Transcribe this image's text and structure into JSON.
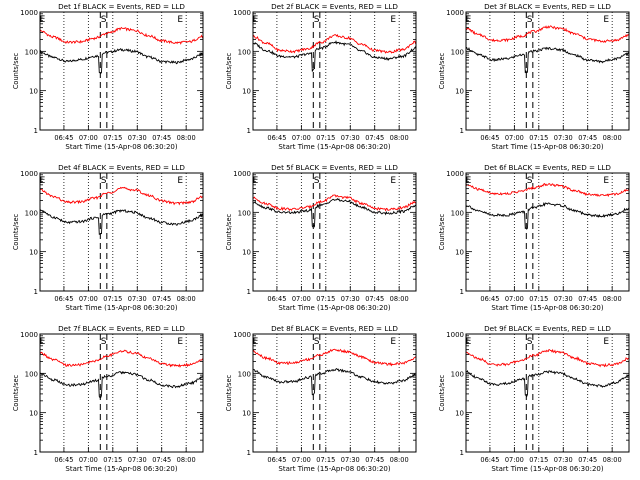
{
  "figure": {
    "ylabel": "Counts/sec",
    "xlabel": "Start Time (15-Apr-08 06:30:20)",
    "x_ticklabels": [
      "06:45",
      "07:00",
      "07:15",
      "07:30",
      "07:45",
      "08:00"
    ],
    "y_ticklabels": [
      "1",
      "10",
      "100",
      "1000"
    ],
    "colors": {
      "events": "#000000",
      "lld": "#ff0000",
      "axes": "#000000",
      "background": "#ffffff"
    }
  },
  "chart_data": [
    {
      "title": "Det 1f BLACK = Events, RED = LLD",
      "markers": [
        "E",
        "S",
        "E"
      ],
      "type": "line",
      "xlim": [
        "06:30:20",
        "08:10"
      ],
      "ylim": [
        1,
        1000
      ],
      "yscale": "log",
      "series": [
        {
          "name": "Events",
          "values": [
            95,
            70,
            55,
            62,
            75,
            95,
            110,
            100,
            72,
            55,
            52,
            62,
            85
          ]
        },
        {
          "name": "LLD",
          "values": [
            330,
            230,
            170,
            175,
            215,
            290,
            380,
            340,
            250,
            185,
            165,
            175,
            240
          ]
        }
      ]
    },
    {
      "title": "Det 2f BLACK = Events, RED = LLD",
      "markers": [
        "E",
        "S",
        "E"
      ],
      "type": "line",
      "xlim": [
        "06:30:20",
        "08:10"
      ],
      "ylim": [
        1,
        1000
      ],
      "yscale": "log",
      "series": [
        {
          "name": "Events",
          "values": [
            160,
            105,
            75,
            72,
            85,
            120,
            170,
            150,
            100,
            70,
            65,
            75,
            120
          ]
        },
        {
          "name": "LLD",
          "values": [
            240,
            160,
            105,
            100,
            115,
            170,
            250,
            220,
            150,
            105,
            95,
            110,
            175
          ]
        }
      ]
    },
    {
      "title": "Det 3f BLACK = Events, RED = LLD",
      "markers": [
        "E",
        "S",
        "E"
      ],
      "type": "line",
      "xlim": [
        "06:30:20",
        "08:10"
      ],
      "ylim": [
        1,
        1000
      ],
      "yscale": "log",
      "series": [
        {
          "name": "Events",
          "values": [
            120,
            80,
            60,
            65,
            80,
            100,
            120,
            110,
            80,
            60,
            55,
            65,
            90
          ]
        },
        {
          "name": "LLD",
          "values": [
            380,
            260,
            190,
            195,
            240,
            320,
            420,
            380,
            280,
            205,
            180,
            190,
            260
          ]
        }
      ]
    },
    {
      "title": "Det 4f BLACK = Events, RED = LLD",
      "markers": [
        "E",
        "S",
        "E"
      ],
      "type": "line",
      "xlim": [
        "06:30:20",
        "08:10"
      ],
      "ylim": [
        1,
        1000
      ],
      "yscale": "log",
      "series": [
        {
          "name": "Events",
          "values": [
            115,
            75,
            55,
            58,
            72,
            92,
            110,
            100,
            72,
            55,
            50,
            60,
            85
          ]
        },
        {
          "name": "LLD",
          "values": [
            370,
            250,
            180,
            185,
            230,
            310,
            410,
            370,
            270,
            195,
            170,
            180,
            250
          ]
        }
      ]
    },
    {
      "title": "Det 5f BLACK = Events, RED = LLD",
      "markers": [
        "E",
        "S",
        "E"
      ],
      "type": "line",
      "xlim": [
        "06:30:20",
        "08:10"
      ],
      "ylim": [
        1,
        1000
      ],
      "yscale": "log",
      "series": [
        {
          "name": "Events",
          "values": [
            180,
            130,
            100,
            98,
            110,
            150,
            210,
            190,
            135,
            100,
            95,
            105,
            150
          ]
        },
        {
          "name": "LLD",
          "values": [
            230,
            165,
            125,
            120,
            135,
            185,
            260,
            235,
            170,
            125,
            118,
            130,
            185
          ]
        }
      ]
    },
    {
      "title": "Det 6f BLACK = Events, RED = LLD",
      "markers": [
        "E",
        "S",
        "E"
      ],
      "type": "line",
      "xlim": [
        "06:30:20",
        "08:10"
      ],
      "ylim": [
        1,
        1000
      ],
      "yscale": "log",
      "series": [
        {
          "name": "Events",
          "values": [
            150,
            105,
            85,
            85,
            100,
            130,
            165,
            150,
            110,
            85,
            80,
            90,
            125
          ]
        },
        {
          "name": "LLD",
          "values": [
            500,
            380,
            300,
            300,
            340,
            420,
            520,
            470,
            360,
            290,
            270,
            290,
            380
          ]
        }
      ]
    },
    {
      "title": "Det 7f BLACK = Events, RED = LLD",
      "markers": [
        "E",
        "S",
        "E"
      ],
      "type": "line",
      "xlim": [
        "06:30:20",
        "08:10"
      ],
      "ylim": [
        1,
        1000
      ],
      "yscale": "log",
      "series": [
        {
          "name": "Events",
          "values": [
            100,
            68,
            50,
            52,
            65,
            85,
            105,
            95,
            68,
            50,
            46,
            55,
            78
          ]
        },
        {
          "name": "LLD",
          "values": [
            330,
            220,
            160,
            165,
            205,
            280,
            370,
            330,
            240,
            175,
            155,
            165,
            230
          ]
        }
      ]
    },
    {
      "title": "Det 8f BLACK = Events, RED = LLD",
      "markers": [
        "E",
        "S",
        "E"
      ],
      "type": "line",
      "xlim": [
        "06:30:20",
        "08:10"
      ],
      "ylim": [
        1,
        1000
      ],
      "yscale": "log",
      "series": [
        {
          "name": "Events",
          "values": [
            120,
            80,
            60,
            62,
            78,
            100,
            125,
            112,
            80,
            60,
            55,
            65,
            92
          ]
        },
        {
          "name": "LLD",
          "values": [
            360,
            245,
            180,
            185,
            225,
            300,
            395,
            355,
            260,
            190,
            170,
            180,
            250
          ]
        }
      ]
    },
    {
      "title": "Det 9f BLACK = Events, RED = LLD",
      "markers": [
        "E",
        "S",
        "E"
      ],
      "type": "line",
      "xlim": [
        "06:30:20",
        "08:10"
      ],
      "ylim": [
        1,
        1000
      ],
      "yscale": "log",
      "series": [
        {
          "name": "Events",
          "values": [
            110,
            72,
            52,
            55,
            70,
            90,
            110,
            100,
            72,
            52,
            48,
            58,
            85
          ]
        },
        {
          "name": "LLD",
          "values": [
            340,
            230,
            165,
            170,
            210,
            285,
            380,
            340,
            245,
            180,
            160,
            170,
            240
          ]
        }
      ]
    }
  ]
}
